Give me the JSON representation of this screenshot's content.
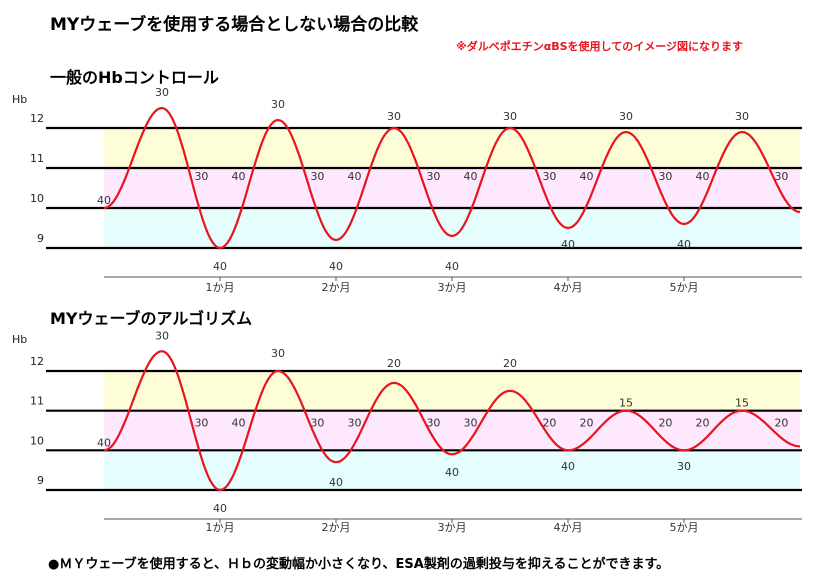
{
  "title": "MYウェーブを使用する場合としない場合の比較",
  "note": "※ダルベポエチンαBSを使用してのイメージ図になります",
  "footer": "●ＭＹウェーブを使用すると、Ｈｂの変動幅か小さくなり、ESA製剤の過剰投与を抑えることができます。",
  "colors": {
    "band_12_11": "#fdfdd8",
    "band_11_10": "#fde8fd",
    "band_10_9": "#e6fdfd",
    "curve": "#e8141e",
    "lines": "#000000"
  },
  "chart_data": [
    {
      "type": "line",
      "title": "一般のHbコントロール",
      "ylabel": "Hb",
      "yticks": [
        12,
        11,
        10,
        9
      ],
      "ylim": [
        9,
        12
      ],
      "bands": [
        [
          11,
          12
        ],
        [
          10,
          11
        ],
        [
          9,
          10
        ]
      ],
      "xticks": [
        "1か月",
        "2か月",
        "3か月",
        "4か月",
        "5か月"
      ],
      "xlim": [
        0,
        6
      ],
      "points": [
        {
          "x": 0,
          "y": 10.0,
          "label": "40"
        },
        {
          "x": 0.5,
          "y": 12.5,
          "label": "30"
        },
        {
          "x": 1.0,
          "y": 9.0,
          "label": "40"
        },
        {
          "x": 1.5,
          "y": 12.2,
          "label": "30"
        },
        {
          "x": 2.0,
          "y": 9.2,
          "label": "40"
        },
        {
          "x": 2.5,
          "y": 12.0,
          "label": "30"
        },
        {
          "x": 3.0,
          "y": 9.3,
          "label": "40"
        },
        {
          "x": 3.5,
          "y": 12.0,
          "label": "30"
        },
        {
          "x": 4.0,
          "y": 9.5,
          "label": "40"
        },
        {
          "x": 4.5,
          "y": 11.9,
          "label": "30"
        },
        {
          "x": 5.0,
          "y": 9.6,
          "label": "40"
        },
        {
          "x": 5.5,
          "y": 11.9,
          "label": "30"
        },
        {
          "x": 6.0,
          "y": 9.9,
          "label": ""
        }
      ],
      "labels": [
        {
          "x": 0.0,
          "y": 10.2,
          "text": "40"
        },
        {
          "x": 0.5,
          "y": 12.9,
          "text": "30"
        },
        {
          "x": 0.84,
          "y": 10.8,
          "text": "30"
        },
        {
          "x": 1.16,
          "y": 10.8,
          "text": "40"
        },
        {
          "x": 1.0,
          "y": 8.55,
          "text": "40"
        },
        {
          "x": 1.5,
          "y": 12.6,
          "text": "30"
        },
        {
          "x": 1.84,
          "y": 10.8,
          "text": "30"
        },
        {
          "x": 2.16,
          "y": 10.8,
          "text": "40"
        },
        {
          "x": 2.0,
          "y": 8.55,
          "text": "40"
        },
        {
          "x": 2.5,
          "y": 12.3,
          "text": "30"
        },
        {
          "x": 2.84,
          "y": 10.8,
          "text": "30"
        },
        {
          "x": 3.16,
          "y": 10.8,
          "text": "40"
        },
        {
          "x": 3.0,
          "y": 8.55,
          "text": "40"
        },
        {
          "x": 3.5,
          "y": 12.3,
          "text": "30"
        },
        {
          "x": 3.84,
          "y": 10.8,
          "text": "30"
        },
        {
          "x": 4.16,
          "y": 10.8,
          "text": "40"
        },
        {
          "x": 4.0,
          "y": 9.1,
          "text": "40"
        },
        {
          "x": 4.5,
          "y": 12.3,
          "text": "30"
        },
        {
          "x": 4.84,
          "y": 10.8,
          "text": "30"
        },
        {
          "x": 5.16,
          "y": 10.8,
          "text": "40"
        },
        {
          "x": 5.0,
          "y": 9.1,
          "text": "40"
        },
        {
          "x": 5.5,
          "y": 12.3,
          "text": "30"
        },
        {
          "x": 5.84,
          "y": 10.8,
          "text": "30"
        }
      ]
    },
    {
      "type": "line",
      "title": "MYウェーブのアルゴリズム",
      "ylabel": "Hb",
      "yticks": [
        12,
        11,
        10,
        9
      ],
      "ylim": [
        9,
        12
      ],
      "bands": [
        [
          11,
          12
        ],
        [
          10,
          11
        ],
        [
          9,
          10
        ]
      ],
      "xticks": [
        "1か月",
        "2か月",
        "3か月",
        "4か月",
        "5か月"
      ],
      "xlim": [
        0,
        6
      ],
      "points": [
        {
          "x": 0,
          "y": 10.0
        },
        {
          "x": 0.5,
          "y": 12.5
        },
        {
          "x": 1.0,
          "y": 9.0
        },
        {
          "x": 1.5,
          "y": 12.0
        },
        {
          "x": 2.0,
          "y": 9.7
        },
        {
          "x": 2.5,
          "y": 11.7
        },
        {
          "x": 3.0,
          "y": 9.9
        },
        {
          "x": 3.5,
          "y": 11.5
        },
        {
          "x": 4.0,
          "y": 10.0
        },
        {
          "x": 4.5,
          "y": 11.0
        },
        {
          "x": 5.0,
          "y": 10.0
        },
        {
          "x": 5.5,
          "y": 11.0
        },
        {
          "x": 6.0,
          "y": 10.1
        }
      ],
      "labels": [
        {
          "x": 0.0,
          "y": 10.2,
          "text": "40"
        },
        {
          "x": 0.5,
          "y": 12.9,
          "text": "30"
        },
        {
          "x": 0.84,
          "y": 10.7,
          "text": "30"
        },
        {
          "x": 1.16,
          "y": 10.7,
          "text": "40"
        },
        {
          "x": 1.0,
          "y": 8.55,
          "text": "40"
        },
        {
          "x": 1.5,
          "y": 12.45,
          "text": "30"
        },
        {
          "x": 1.84,
          "y": 10.7,
          "text": "30"
        },
        {
          "x": 2.16,
          "y": 10.7,
          "text": "30"
        },
        {
          "x": 2.0,
          "y": 9.2,
          "text": "40"
        },
        {
          "x": 2.5,
          "y": 12.2,
          "text": "20"
        },
        {
          "x": 2.84,
          "y": 10.7,
          "text": "30"
        },
        {
          "x": 3.16,
          "y": 10.7,
          "text": "30"
        },
        {
          "x": 3.0,
          "y": 9.45,
          "text": "40"
        },
        {
          "x": 3.5,
          "y": 12.2,
          "text": "20"
        },
        {
          "x": 3.84,
          "y": 10.7,
          "text": "20"
        },
        {
          "x": 4.16,
          "y": 10.7,
          "text": "20"
        },
        {
          "x": 4.0,
          "y": 9.6,
          "text": "40"
        },
        {
          "x": 4.5,
          "y": 11.2,
          "text": "15"
        },
        {
          "x": 4.84,
          "y": 10.7,
          "text": "20"
        },
        {
          "x": 5.16,
          "y": 10.7,
          "text": "20"
        },
        {
          "x": 5.0,
          "y": 9.6,
          "text": "30"
        },
        {
          "x": 5.5,
          "y": 11.2,
          "text": "15"
        },
        {
          "x": 5.84,
          "y": 10.7,
          "text": "20"
        }
      ]
    }
  ]
}
